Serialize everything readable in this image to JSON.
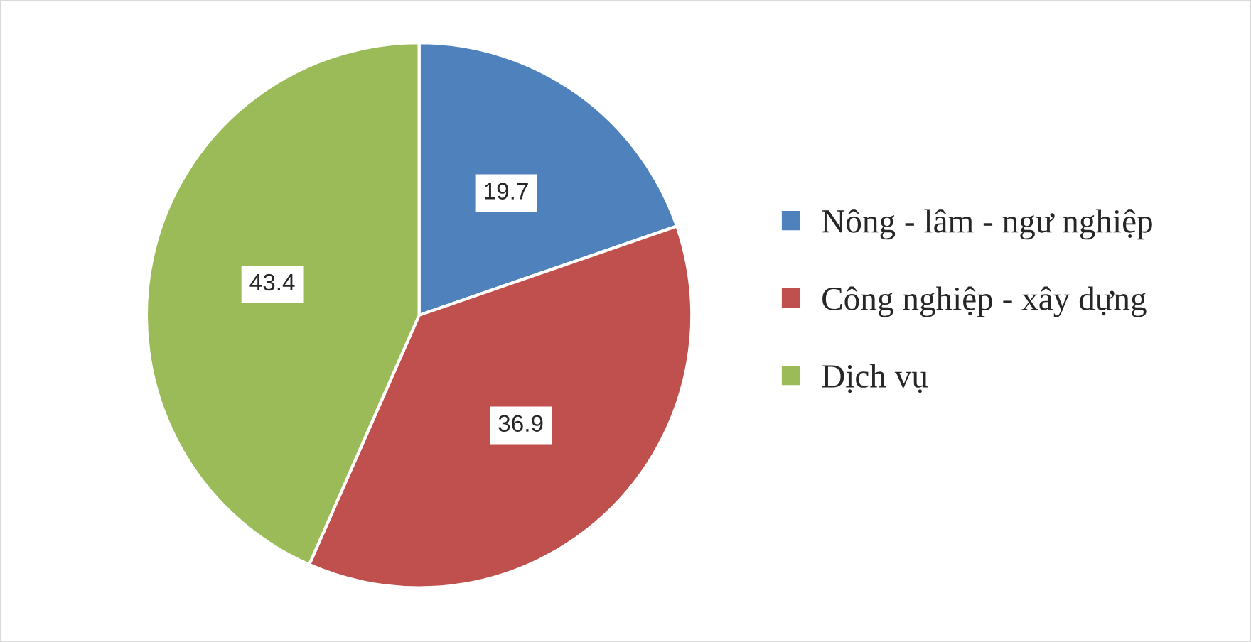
{
  "chart_data": {
    "type": "pie",
    "categories": [
      "Nông - lâm - ngư nghiệp",
      "Công nghiệp - xây dựng",
      "Dịch vụ"
    ],
    "values": [
      19.7,
      36.9,
      43.4
    ],
    "colors": [
      "#4f81bd",
      "#c0504d",
      "#9bbb59"
    ],
    "data_labels": true,
    "legend": "right"
  }
}
